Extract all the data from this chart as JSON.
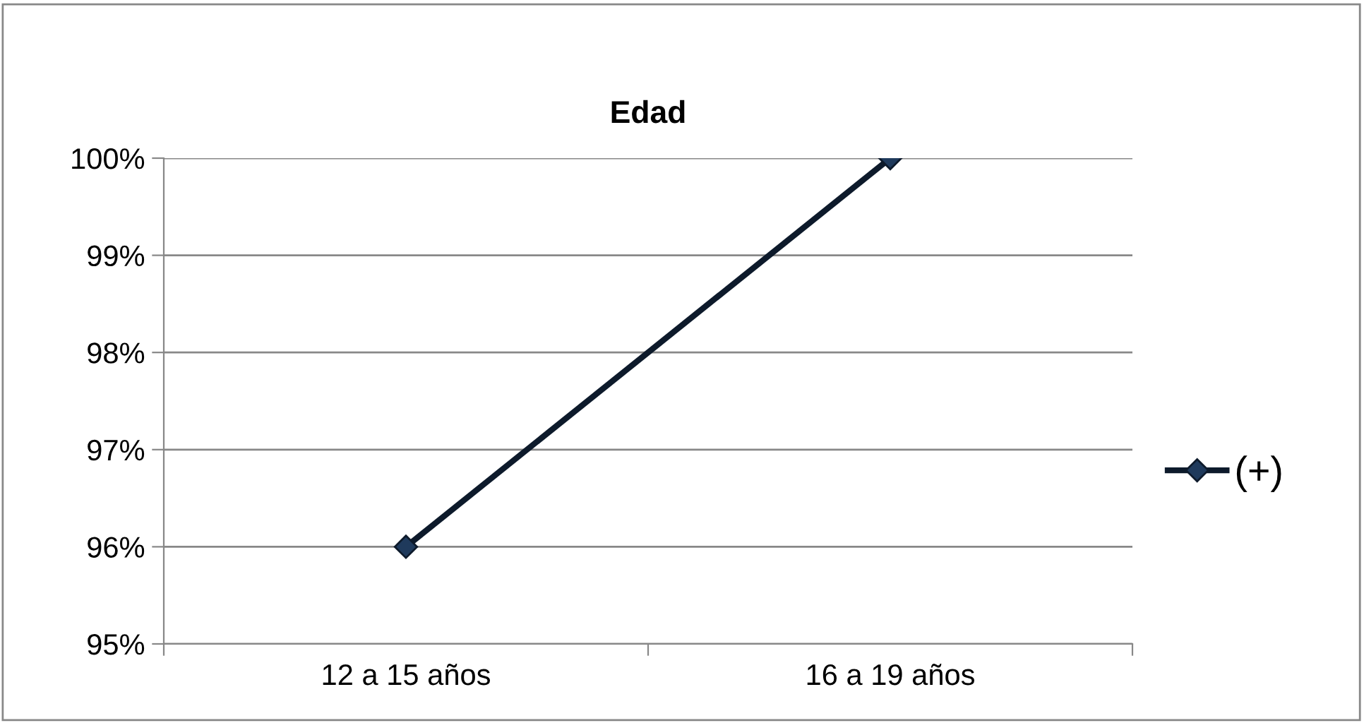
{
  "chart_data": {
    "type": "line",
    "title": "Edad",
    "categories": [
      "12 a 15 años",
      "16 a 19 años"
    ],
    "series": [
      {
        "name": "(+)",
        "color": "#0d1a2b",
        "values": [
          96,
          100
        ]
      }
    ],
    "ylim": [
      95,
      100
    ],
    "yticks": [
      {
        "value": 95,
        "label": "95%"
      },
      {
        "value": 96,
        "label": "96%"
      },
      {
        "value": 97,
        "label": "97%"
      },
      {
        "value": 98,
        "label": "98%"
      },
      {
        "value": 99,
        "label": "99%"
      },
      {
        "value": 100,
        "label": "100%"
      }
    ],
    "grid": "y",
    "legend": "right",
    "marker": "diamond",
    "line_style": "solid"
  }
}
